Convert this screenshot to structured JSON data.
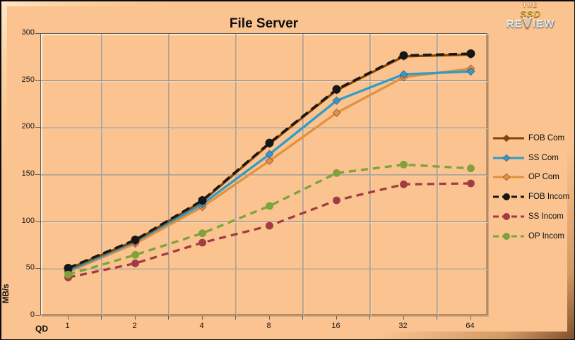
{
  "logo": {
    "the": "THE",
    "ssd": "SSD",
    "re": "RE",
    "v": "V",
    "iew": "IEW"
  },
  "axes": {
    "y_ticks": [
      "300",
      "250",
      "200",
      "150",
      "100",
      "50",
      "0"
    ],
    "x_ticks": [
      "1",
      "2",
      "4",
      "8",
      "16",
      "32",
      "64"
    ]
  },
  "colors": {
    "background": "#FAC38F",
    "frame_highlight": "#FFE7C6",
    "frame_shadow": "#7E4F2C",
    "gridline": "#757D89",
    "gridline_highlight": "#FFE9C6",
    "axis": "#5E5E5E",
    "text": "#111111"
  },
  "chart_data": {
    "type": "line",
    "title": "File Server",
    "xlabel": "QD",
    "ylabel": "MB/s",
    "x": [
      1,
      2,
      4,
      8,
      16,
      32,
      64
    ],
    "ylim": [
      0,
      300
    ],
    "grid": true,
    "legend_position": "right",
    "series": [
      {
        "name": "FOB Com",
        "color": "#8A4500",
        "style": "solid",
        "dash": null,
        "marker": "diamond",
        "values": [
          50,
          80,
          122,
          183,
          240,
          276,
          278
        ]
      },
      {
        "name": "SS Com",
        "color": "#2E9CCB",
        "style": "solid",
        "dash": null,
        "marker": "diamond",
        "values": [
          48,
          79,
          119,
          172,
          229,
          257,
          260
        ]
      },
      {
        "name": "OP Com",
        "color": "#E2913F",
        "style": "solid",
        "dash": null,
        "marker": "diamond",
        "values": [
          47,
          77,
          116,
          165,
          216,
          254,
          263
        ]
      },
      {
        "name": "FOB Incom",
        "color": "#161616",
        "style": "dashed",
        "dash": "12 6",
        "marker": "circle",
        "values": [
          51,
          81,
          123,
          184,
          241,
          277,
          279
        ]
      },
      {
        "name": "SS Incom",
        "color": "#A23B44",
        "style": "dashed",
        "dash": "10 7",
        "marker": "circle",
        "values": [
          41,
          56,
          78,
          96,
          123,
          140,
          141
        ]
      },
      {
        "name": "OP Incom",
        "color": "#7CA33C",
        "style": "dashed",
        "dash": "10 7",
        "marker": "circle",
        "values": [
          44,
          65,
          88,
          117,
          152,
          161,
          157
        ]
      }
    ]
  }
}
